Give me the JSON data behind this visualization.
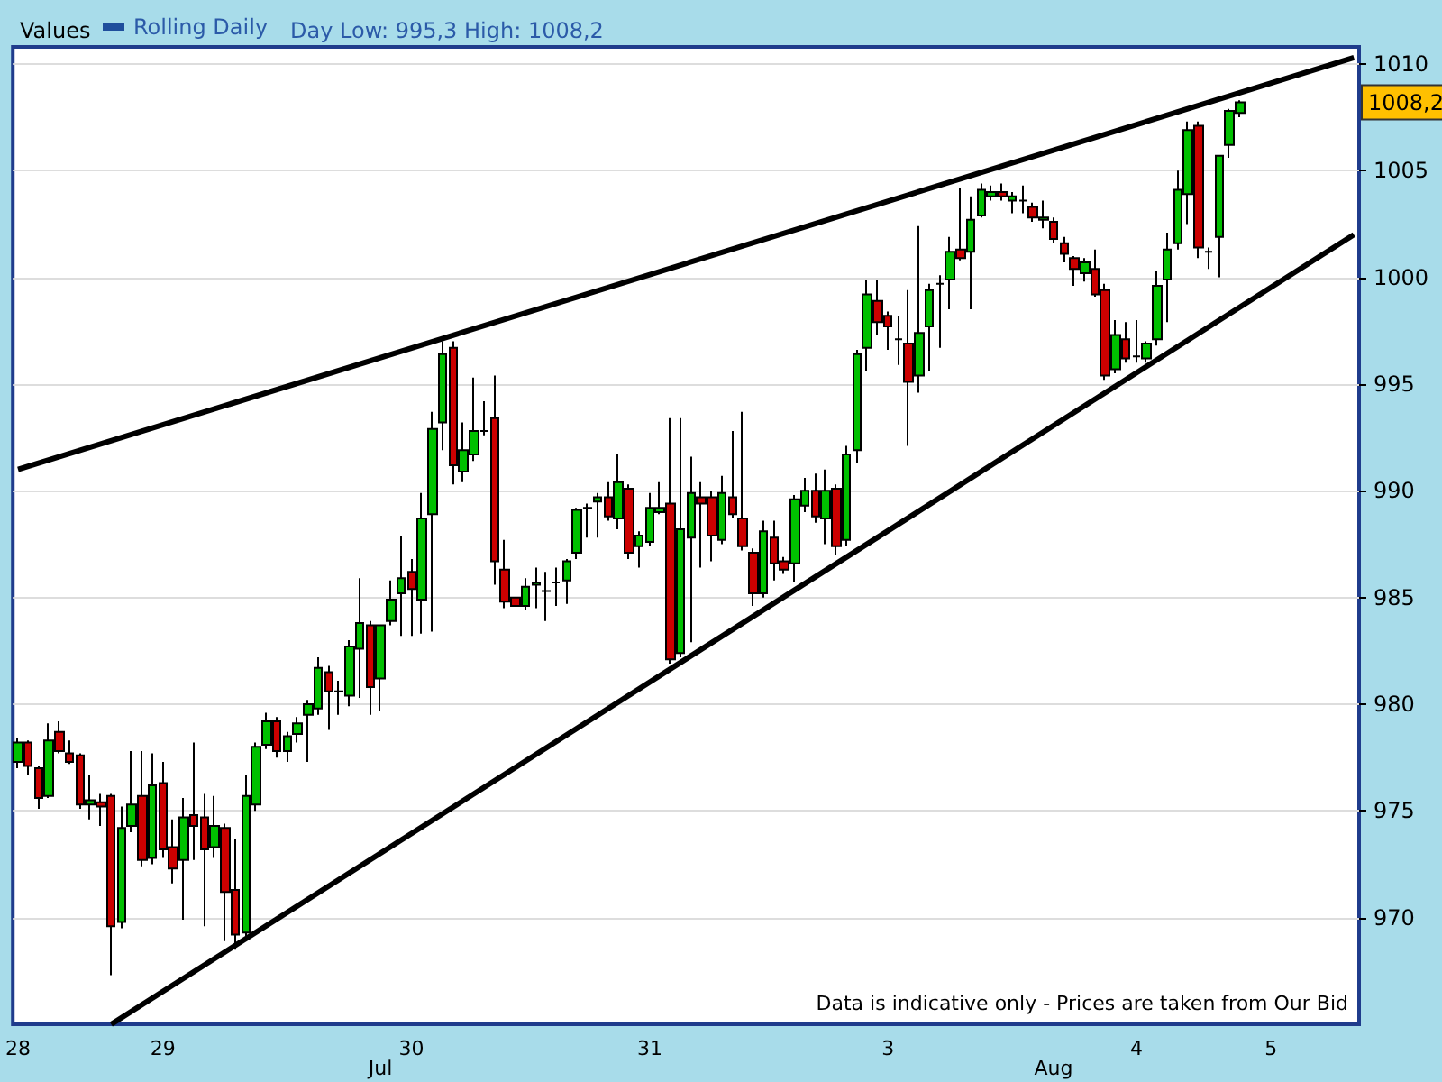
{
  "chart_data": {
    "type": "candlestick",
    "title": "Values",
    "subtitle": "Day Low: 995,3 High: 1008,2",
    "categories": [
      "28",
      null,
      null,
      null,
      null,
      null,
      null,
      null,
      null,
      null,
      null,
      null,
      null,
      null,
      "29",
      null,
      null,
      null,
      null,
      null,
      null,
      null,
      null,
      null,
      null,
      null,
      null,
      null,
      null,
      null,
      null,
      null,
      null,
      null,
      null,
      "Jul",
      null,
      null,
      "30",
      null,
      null,
      null,
      null,
      null,
      null,
      null,
      null,
      null,
      null,
      null,
      null,
      null,
      null,
      null,
      null,
      null,
      null,
      null,
      null,
      null,
      null,
      "31",
      null,
      null,
      null,
      null,
      null,
      null,
      null,
      null,
      null,
      null,
      null,
      null,
      null,
      null,
      null,
      null,
      null,
      null,
      null,
      null,
      null,
      null,
      "3",
      null,
      null,
      null,
      null,
      null,
      null,
      null,
      null,
      null,
      null,
      null,
      null,
      null,
      null,
      null,
      "Aug",
      null,
      null,
      null,
      null,
      null,
      null,
      null,
      "4",
      null,
      null,
      null,
      null,
      null,
      null,
      null,
      null,
      null,
      null,
      null,
      null,
      "5",
      null,
      null,
      null,
      null,
      null,
      null,
      null,
      null
    ],
    "series": [
      {
        "name": "Rolling Daily",
        "ohlc": [
          [
            977.3,
            978.4,
            977.0,
            978.2
          ],
          [
            978.2,
            978.3,
            976.7,
            977.1
          ],
          [
            977.0,
            977.1,
            975.1,
            975.6
          ],
          [
            975.7,
            979.1,
            975.6,
            978.3
          ],
          [
            978.7,
            979.2,
            977.7,
            977.8
          ],
          [
            977.7,
            978.3,
            977.2,
            977.3
          ],
          [
            977.6,
            977.7,
            975.1,
            975.3
          ],
          [
            975.3,
            976.7,
            974.6,
            975.5
          ],
          [
            975.4,
            975.8,
            974.3,
            975.2
          ],
          [
            975.7,
            975.8,
            967.3,
            969.6
          ],
          [
            969.8,
            975.2,
            969.5,
            974.2
          ],
          [
            974.3,
            977.8,
            974.0,
            975.3
          ],
          [
            975.7,
            977.8,
            972.4,
            972.7
          ],
          [
            972.8,
            977.7,
            972.5,
            976.2
          ],
          [
            976.3,
            977.3,
            972.8,
            973.2
          ],
          [
            973.3,
            974.6,
            971.6,
            972.3
          ],
          [
            972.7,
            975.6,
            969.9,
            974.7
          ],
          [
            974.8,
            978.2,
            972.7,
            974.3
          ],
          [
            974.7,
            975.8,
            969.6,
            973.2
          ],
          [
            973.3,
            975.7,
            972.8,
            974.3
          ],
          [
            974.2,
            974.4,
            968.9,
            971.2
          ],
          [
            971.3,
            973.7,
            968.5,
            969.2
          ],
          [
            969.3,
            976.7,
            969.0,
            975.7
          ],
          [
            975.3,
            978.2,
            975.0,
            978.0
          ],
          [
            978.1,
            979.6,
            977.9,
            979.2
          ],
          [
            979.2,
            979.4,
            977.5,
            977.8
          ],
          [
            977.8,
            978.7,
            977.3,
            978.5
          ],
          [
            978.6,
            979.4,
            978.2,
            979.1
          ],
          [
            979.5,
            980.2,
            977.3,
            980.0
          ],
          [
            979.8,
            982.2,
            979.5,
            981.7
          ],
          [
            981.5,
            981.8,
            978.8,
            980.6
          ],
          [
            980.6,
            981.1,
            979.5,
            980.6
          ],
          [
            980.4,
            983.0,
            979.9,
            982.7
          ],
          [
            982.6,
            985.9,
            980.3,
            983.8
          ],
          [
            983.7,
            983.9,
            979.5,
            980.8
          ],
          [
            981.2,
            983.7,
            979.7,
            983.7
          ],
          [
            983.9,
            985.8,
            983.7,
            984.9
          ],
          [
            985.2,
            987.9,
            983.2,
            985.9
          ],
          [
            986.2,
            986.8,
            983.2,
            985.4
          ],
          [
            984.9,
            989.9,
            983.3,
            988.7
          ],
          [
            988.9,
            993.7,
            983.4,
            992.9
          ],
          [
            993.2,
            997.0,
            991.9,
            996.4
          ],
          [
            996.7,
            997.0,
            990.3,
            991.2
          ],
          [
            990.9,
            993.2,
            990.4,
            991.9
          ],
          [
            991.7,
            995.3,
            991.4,
            992.8
          ],
          [
            992.8,
            994.2,
            992.6,
            992.8
          ],
          [
            993.4,
            995.4,
            985.6,
            986.7
          ],
          [
            986.3,
            987.7,
            984.5,
            984.8
          ],
          [
            985.0,
            985.0,
            984.6,
            984.6
          ],
          [
            984.6,
            985.9,
            984.4,
            985.5
          ],
          [
            985.6,
            986.4,
            984.5,
            985.7
          ],
          [
            985.3,
            986.2,
            983.9,
            985.3
          ],
          [
            985.7,
            986.4,
            984.6,
            985.7
          ],
          [
            985.8,
            986.8,
            984.7,
            986.7
          ],
          [
            987.1,
            989.2,
            986.8,
            989.1
          ],
          [
            989.2,
            989.4,
            987.8,
            989.2
          ],
          [
            989.5,
            989.9,
            987.8,
            989.7
          ],
          [
            989.7,
            990.4,
            988.6,
            988.8
          ],
          [
            988.7,
            991.7,
            988.2,
            990.4
          ],
          [
            990.1,
            990.3,
            986.8,
            987.1
          ],
          [
            987.4,
            988.1,
            986.4,
            987.9
          ],
          [
            987.6,
            989.9,
            987.4,
            989.2
          ],
          [
            989.0,
            990.4,
            988.9,
            989.2
          ],
          [
            989.4,
            993.4,
            981.9,
            982.1
          ],
          [
            982.4,
            993.4,
            982.2,
            988.2
          ],
          [
            987.8,
            991.6,
            982.9,
            989.9
          ],
          [
            989.7,
            990.4,
            986.4,
            989.4
          ],
          [
            989.7,
            990.0,
            986.7,
            987.9
          ],
          [
            987.7,
            990.7,
            987.5,
            989.9
          ],
          [
            989.7,
            992.8,
            988.7,
            988.9
          ],
          [
            988.7,
            993.7,
            987.2,
            987.4
          ],
          [
            987.1,
            987.3,
            984.6,
            985.2
          ],
          [
            985.2,
            988.6,
            985.0,
            988.1
          ],
          [
            987.8,
            988.6,
            985.8,
            986.6
          ],
          [
            986.7,
            986.9,
            986.1,
            986.3
          ],
          [
            986.6,
            989.8,
            985.7,
            989.6
          ],
          [
            989.3,
            990.6,
            989.0,
            990.0
          ],
          [
            990.0,
            990.8,
            988.5,
            988.8
          ],
          [
            988.7,
            991.0,
            987.5,
            990.0
          ],
          [
            990.1,
            990.3,
            987.0,
            987.4
          ],
          [
            987.7,
            992.1,
            987.4,
            991.7
          ],
          [
            991.9,
            996.6,
            991.3,
            996.4
          ],
          [
            996.7,
            999.9,
            995.6,
            999.2
          ],
          [
            998.9,
            999.9,
            997.3,
            997.9
          ],
          [
            998.2,
            998.4,
            996.6,
            997.7
          ],
          [
            997.1,
            998.2,
            995.9,
            997.1
          ],
          [
            996.9,
            999.4,
            992.1,
            995.1
          ],
          [
            995.4,
            1002.4,
            994.6,
            997.4
          ],
          [
            997.7,
            999.7,
            995.6,
            999.4
          ],
          [
            999.7,
            1000.1,
            996.7,
            999.7
          ],
          [
            999.9,
            1001.9,
            998.5,
            1001.2
          ],
          [
            1001.3,
            1004.2,
            1000.8,
            1000.9
          ],
          [
            1001.2,
            1003.8,
            998.5,
            1002.7
          ],
          [
            1002.9,
            1004.4,
            1002.8,
            1004.1
          ],
          [
            1003.8,
            1004.3,
            1003.6,
            1004.0
          ],
          [
            1004.0,
            1004.4,
            1003.6,
            1003.8
          ],
          [
            1003.6,
            1004.0,
            1003.0,
            1003.8
          ],
          [
            1003.6,
            1004.3,
            1003.0,
            1003.6
          ],
          [
            1003.3,
            1003.5,
            1002.6,
            1002.8
          ],
          [
            1002.7,
            1003.6,
            1002.3,
            1002.8
          ],
          [
            1002.6,
            1002.8,
            1001.6,
            1001.8
          ],
          [
            1001.6,
            1001.9,
            1000.7,
            1001.1
          ],
          [
            1000.9,
            1001.0,
            999.6,
            1000.4
          ],
          [
            1000.2,
            1000.9,
            999.8,
            1000.7
          ],
          [
            1000.4,
            1001.3,
            999.1,
            999.2
          ],
          [
            999.4,
            999.7,
            995.2,
            995.4
          ],
          [
            995.7,
            998.0,
            995.5,
            997.3
          ],
          [
            997.1,
            997.9,
            996.0,
            996.2
          ],
          [
            996.3,
            998.0,
            996.0,
            996.3
          ],
          [
            996.2,
            997.0,
            996.0,
            996.9
          ],
          [
            997.1,
            1000.3,
            996.8,
            999.6
          ],
          [
            999.9,
            1002.1,
            997.9,
            1001.3
          ],
          [
            1001.6,
            1005.0,
            1001.3,
            1004.1
          ],
          [
            1003.9,
            1007.3,
            1002.5,
            1006.9
          ],
          [
            1007.1,
            1007.3,
            1000.9,
            1001.4
          ],
          [
            1001.2,
            1001.4,
            1000.4,
            1001.2
          ],
          [
            1001.9,
            1005.7,
            1000.0,
            1005.7
          ],
          [
            1006.2,
            1007.9,
            1005.6,
            1007.8
          ],
          [
            1007.7,
            1008.3,
            1007.5,
            1008.2
          ],
          null,
          null,
          null,
          null,
          null,
          null,
          null,
          null,
          null,
          null,
          null
        ]
      },
      {
        "type": "line",
        "color": "#000000",
        "values": [
          991.0,
          null,
          null,
          null,
          null,
          null,
          null,
          null,
          null,
          null,
          null,
          null,
          null,
          null,
          null,
          null,
          null,
          null,
          null,
          null,
          null,
          null,
          null,
          null,
          null,
          null,
          null,
          null,
          null,
          null,
          null,
          null,
          null,
          null,
          null,
          null,
          null,
          null,
          null,
          null,
          null,
          null,
          null,
          null,
          null,
          null,
          null,
          null,
          null,
          null,
          null,
          null,
          null,
          null,
          null,
          null,
          null,
          null,
          null,
          null,
          null,
          null,
          null,
          null,
          null,
          null,
          null,
          null,
          null,
          null,
          null,
          null,
          null,
          null,
          null,
          null,
          null,
          null,
          null,
          null,
          null,
          null,
          null,
          null,
          null,
          null,
          null,
          null,
          null,
          null,
          null,
          null,
          null,
          null,
          null,
          null,
          null,
          null,
          null,
          null,
          null,
          null,
          null,
          null,
          null,
          null,
          null,
          null,
          null,
          null,
          null,
          null,
          null,
          null,
          null,
          null,
          null,
          null,
          null,
          null,
          null,
          null,
          null,
          null,
          null,
          null,
          null,
          null,
          null,
          1010.3
        ]
      },
      {
        "type": "line",
        "color": "#000000",
        "values": [
          null,
          null,
          null,
          null,
          null,
          null,
          null,
          null,
          null,
          965.0,
          null,
          null,
          null,
          null,
          null,
          null,
          null,
          null,
          null,
          null,
          null,
          null,
          null,
          null,
          null,
          null,
          null,
          null,
          null,
          null,
          null,
          null,
          null,
          null,
          null,
          null,
          null,
          null,
          null,
          null,
          null,
          null,
          null,
          null,
          null,
          null,
          null,
          null,
          null,
          null,
          null,
          null,
          null,
          null,
          null,
          null,
          null,
          null,
          null,
          null,
          null,
          null,
          null,
          null,
          null,
          null,
          null,
          null,
          null,
          null,
          null,
          null,
          null,
          null,
          null,
          null,
          null,
          null,
          null,
          null,
          null,
          null,
          null,
          null,
          null,
          null,
          null,
          null,
          null,
          null,
          null,
          null,
          null,
          null,
          null,
          null,
          null,
          null,
          null,
          null,
          null,
          null,
          null,
          null,
          null,
          null,
          null,
          null,
          null,
          null,
          null,
          null,
          null,
          null,
          null,
          null,
          null,
          null,
          null,
          null,
          null,
          null,
          null,
          null,
          null,
          null,
          null,
          null,
          null,
          1002.0
        ]
      }
    ],
    "ylim": [
      965,
      1010.8
    ],
    "yticks": [
      970,
      975,
      980,
      985,
      990,
      995,
      1000,
      1005,
      1010
    ],
    "grid": "y",
    "legend": "top left",
    "annotations": [
      "Data is indicative only - Prices are taken from Our Bid",
      "1008,2"
    ]
  }
}
